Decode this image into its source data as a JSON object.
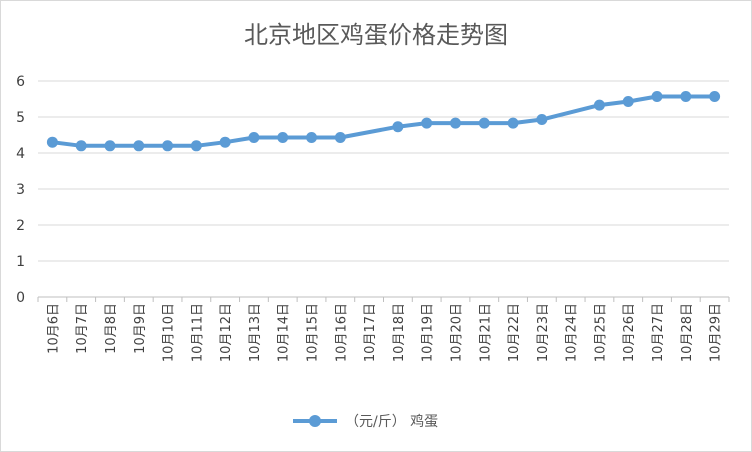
{
  "chart_data": {
    "type": "line",
    "title": "北京地区鸡蛋价格走势图",
    "xlabel": "",
    "ylabel": "",
    "categories": [
      "10月6日",
      "10月7日",
      "10月8日",
      "10月9日",
      "10月10日",
      "10月11日",
      "10月12日",
      "10月13日",
      "10月14日",
      "10月15日",
      "10月16日",
      "10月17日",
      "10月18日",
      "10月19日",
      "10月20日",
      "10月21日",
      "10月22日",
      "10月23日",
      "10月24日",
      "10月25日",
      "10月26日",
      "10月27日",
      "10月28日",
      "10月29日"
    ],
    "yticks": [
      "0",
      "1",
      "2",
      "3",
      "4",
      "5",
      "6"
    ],
    "ylim": [
      0,
      6
    ],
    "grid": true,
    "legend_position": "bottom",
    "series": [
      {
        "name": "（元/斤） 鸡蛋",
        "color": "#5b9bd5",
        "values": [
          4.3,
          4.2,
          4.2,
          4.2,
          4.2,
          4.2,
          4.3,
          4.43,
          4.43,
          4.43,
          4.43,
          null,
          4.73,
          4.83,
          4.83,
          4.83,
          4.83,
          4.93,
          null,
          5.33,
          5.43,
          5.57,
          5.57,
          5.57
        ]
      }
    ]
  }
}
